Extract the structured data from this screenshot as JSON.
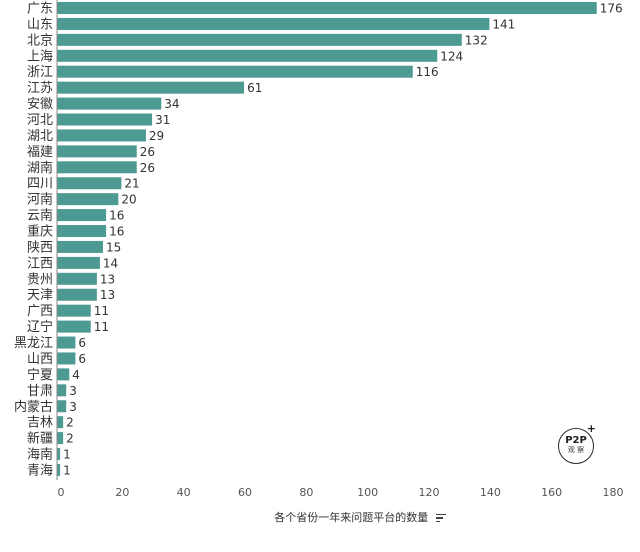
{
  "colors": {
    "bar": "#4d9a92",
    "text": "#333333",
    "grid": "#e6e6e6",
    "axis": "#888888"
  },
  "logo": {
    "main": "P2P",
    "plus": "+",
    "sub": "观 察"
  },
  "chart_data": {
    "type": "bar",
    "orientation": "horizontal",
    "xlabel": "各个省份一年来问题平台的数量",
    "xlim": [
      0,
      180
    ],
    "xticks": [
      0,
      20,
      40,
      60,
      80,
      100,
      120,
      140,
      160,
      180
    ],
    "grid": false,
    "categories": [
      "广东",
      "山东",
      "北京",
      "上海",
      "浙江",
      "江苏",
      "安徽",
      "河北",
      "湖北",
      "福建",
      "湖南",
      "四川",
      "河南",
      "云南",
      "重庆",
      "陕西",
      "江西",
      "贵州",
      "天津",
      "广西",
      "辽宁",
      "黑龙江",
      "山西",
      "宁夏",
      "甘肃",
      "内蒙古",
      "吉林",
      "新疆",
      "海南",
      "青海"
    ],
    "values": [
      176,
      141,
      132,
      124,
      116,
      61,
      34,
      31,
      29,
      26,
      26,
      21,
      20,
      16,
      16,
      15,
      14,
      13,
      13,
      11,
      11,
      6,
      6,
      4,
      3,
      3,
      2,
      2,
      1,
      1
    ]
  }
}
